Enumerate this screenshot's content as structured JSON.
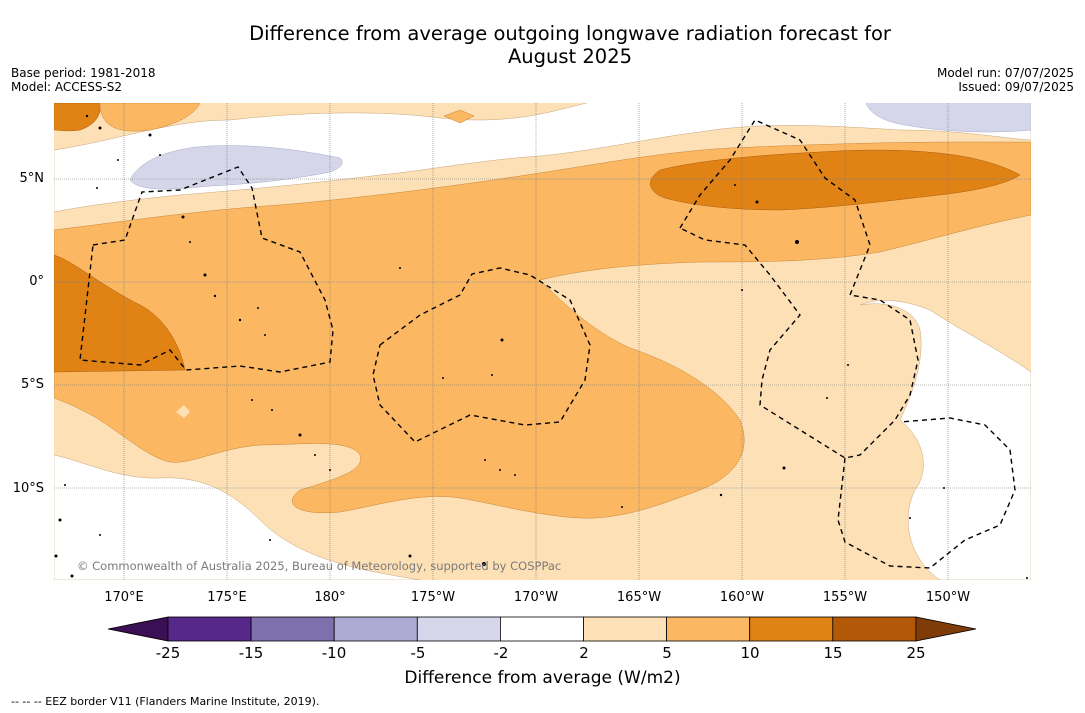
{
  "title_line1": "Difference from average outgoing longwave radiation forecast for",
  "title_line2": "August 2025",
  "base_period": "Base period: 1981-2018",
  "model": "Model: ACCESS-S2",
  "model_run": "Model run: 07/07/2025",
  "issued": "Issued: 09/07/2025",
  "lat_labels": [
    "5°N",
    "0°",
    "5°S",
    "10°S"
  ],
  "lon_labels": [
    "170°E",
    "175°E",
    "180°",
    "175°W",
    "170°W",
    "165°W",
    "160°W",
    "155°W",
    "150°W"
  ],
  "copyright": "© Commonwealth of Australia 2025, Bureau of Meteorology, supported by COSPPac",
  "colorbar": {
    "ticks": [
      "-25",
      "-15",
      "-10",
      "-5",
      "-2",
      "2",
      "5",
      "10",
      "15",
      "25"
    ],
    "colors": [
      "#3b0f53",
      "#55288a",
      "#7d70ad",
      "#aeaad3",
      "#d6d6ea",
      "#ffffff",
      "#fde0b6",
      "#fbb761",
      "#e08214",
      "#b35806",
      "#7f3b08"
    ],
    "title": "Difference from average (W/m2)"
  },
  "footnote": "--  --  -- EEZ border V11 (Flanders Marine Institute, 2019)."
}
